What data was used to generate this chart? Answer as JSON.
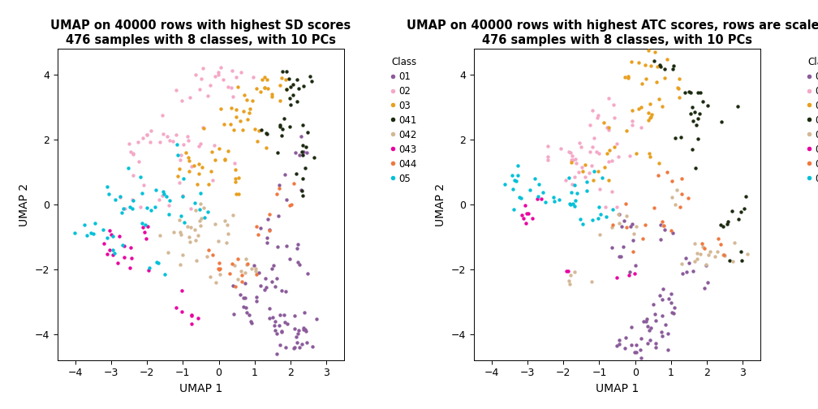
{
  "title1": "UMAP on 40000 rows with highest SD scores\n476 samples with 8 classes, with 10 PCs",
  "title2": "UMAP on 40000 rows with highest ATC scores, rows are scaled\n476 samples with 8 classes, with 10 PCs",
  "xlabel": "UMAP 1",
  "ylabel": "UMAP 2",
  "xlim": [
    -4.5,
    3.5
  ],
  "ylim": [
    -4.8,
    4.8
  ],
  "xticks": [
    -4,
    -3,
    -2,
    -1,
    0,
    1,
    2,
    3
  ],
  "yticks": [
    -4,
    -2,
    0,
    2,
    4
  ],
  "classes": [
    "01",
    "02",
    "03",
    "041",
    "042",
    "043",
    "044",
    "05"
  ],
  "colors": {
    "01": "#8B5B9B",
    "02": "#F4A8C7",
    "03": "#E8A020",
    "041": "#1C2B10",
    "042": "#D4B896",
    "043": "#E800A0",
    "044": "#F07840",
    "05": "#00C0D8"
  },
  "marker_size": 10,
  "background": "#FFFFFF",
  "legend_title": "Class",
  "legend_fontsize": 8.5,
  "title_fontsize": 10.5,
  "axis_fontsize": 9
}
